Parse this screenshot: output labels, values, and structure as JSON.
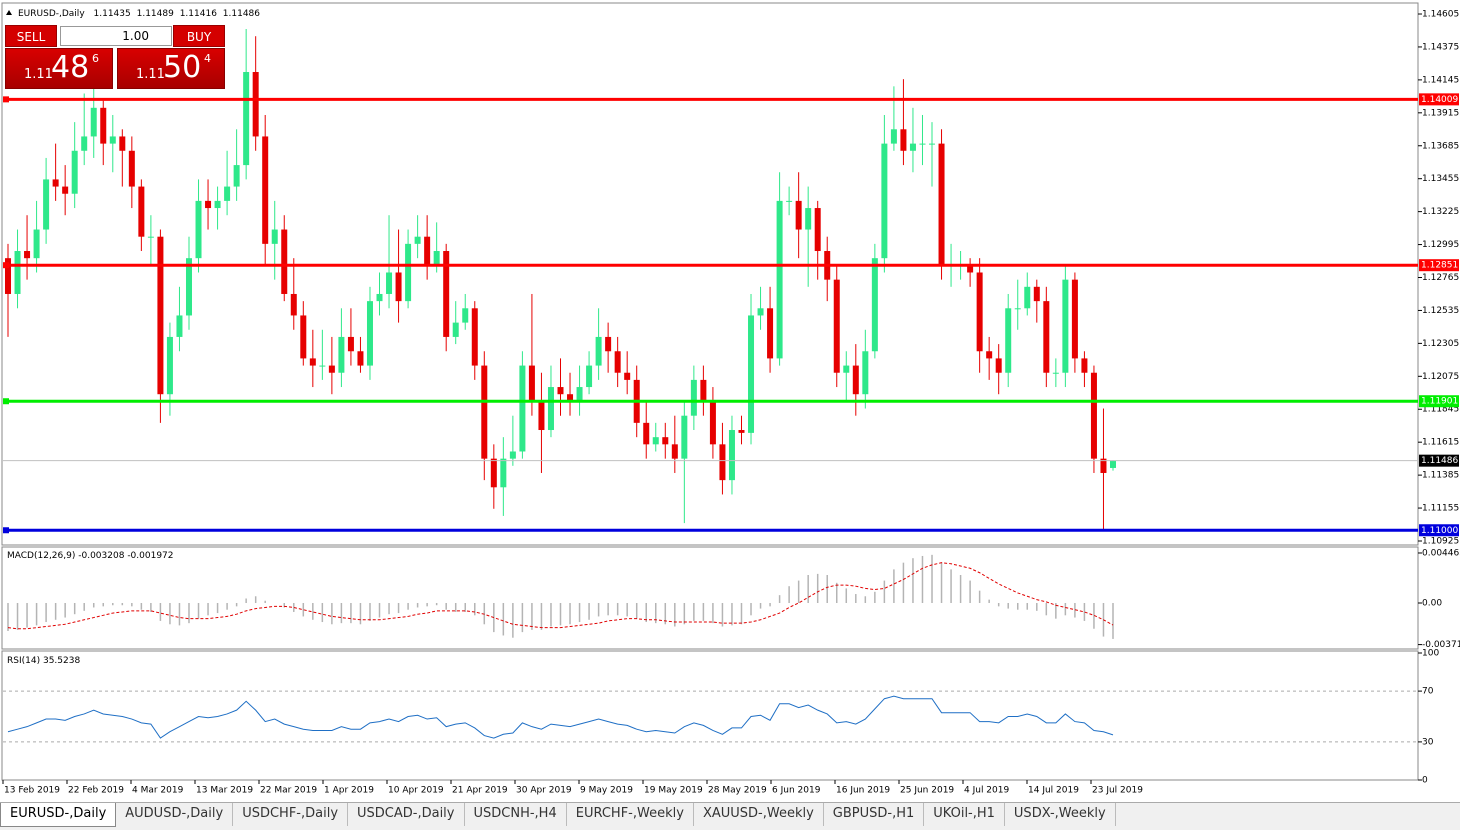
{
  "header": {
    "symbol": "EURUSD-,Daily"
  },
  "trade_panel": {
    "sell": "SELL",
    "buy": "BUY",
    "volume": "1.00",
    "bid": {
      "big": "1.11",
      "main": "48",
      "small": "6"
    },
    "ask": {
      "big": "1.11",
      "main": "50",
      "small": "4"
    }
  },
  "chart_data": [
    {
      "type": "candlestick",
      "title": "EURUSD-,Daily",
      "up_color": "#2ee88a",
      "down_color": "#e60000",
      "open": [
        1.129,
        1.1265,
        1.1295,
        1.129,
        1.131,
        1.1345,
        1.134,
        1.1335,
        1.1365,
        1.1375,
        1.1395,
        1.137,
        1.1375,
        1.1365,
        1.134,
        1.1305,
        1.1305,
        1.1195,
        1.1235,
        1.125,
        1.129,
        1.133,
        1.1325,
        1.133,
        1.134,
        1.1355,
        1.142,
        1.1375,
        1.13,
        1.131,
        1.1265,
        1.125,
        1.122,
        1.1215,
        1.1215,
        1.121,
        1.1235,
        1.1225,
        1.1215,
        1.126,
        1.1265,
        1.128,
        1.126,
        1.13,
        1.1305,
        1.1285,
        1.1295,
        1.1235,
        1.1245,
        1.1255,
        1.1215,
        1.115,
        1.113,
        1.115,
        1.1155,
        1.1215,
        1.119,
        1.117,
        1.12,
        1.1195,
        1.119,
        1.12,
        1.1215,
        1.1235,
        1.1225,
        1.121,
        1.1205,
        1.1175,
        1.116,
        1.1165,
        1.116,
        1.115,
        1.118,
        1.1205,
        1.119,
        1.116,
        1.1135,
        1.117,
        1.1168,
        1.125,
        1.1255,
        1.122,
        1.133,
        1.133,
        1.131,
        1.1325,
        1.1295,
        1.1275,
        1.121,
        1.1215,
        1.1195,
        1.1225,
        1.129,
        1.137,
        1.138,
        1.1365,
        1.137,
        1.137,
        1.137,
        1.1285,
        1.1285,
        1.1285,
        1.128,
        1.1225,
        1.122,
        1.121,
        1.1255,
        1.1255,
        1.127,
        1.126,
        1.121,
        1.121,
        1.1275,
        1.122,
        1.121,
        1.115,
        1.11435
      ],
      "high": [
        1.13,
        1.131,
        1.132,
        1.133,
        1.136,
        1.137,
        1.1355,
        1.1385,
        1.1405,
        1.141,
        1.14,
        1.139,
        1.138,
        1.1375,
        1.1345,
        1.132,
        1.131,
        1.1245,
        1.127,
        1.1305,
        1.1345,
        1.1345,
        1.134,
        1.1365,
        1.138,
        1.145,
        1.1445,
        1.139,
        1.133,
        1.132,
        1.129,
        1.126,
        1.124,
        1.124,
        1.1235,
        1.1255,
        1.1255,
        1.1235,
        1.127,
        1.128,
        1.132,
        1.131,
        1.131,
        1.132,
        1.132,
        1.1315,
        1.13,
        1.126,
        1.1265,
        1.126,
        1.1225,
        1.116,
        1.1165,
        1.118,
        1.1225,
        1.1265,
        1.121,
        1.1215,
        1.122,
        1.121,
        1.1215,
        1.1225,
        1.1255,
        1.1245,
        1.1235,
        1.1225,
        1.1215,
        1.119,
        1.1175,
        1.1175,
        1.118,
        1.119,
        1.1215,
        1.1215,
        1.12,
        1.1175,
        1.118,
        1.118,
        1.1265,
        1.127,
        1.127,
        1.135,
        1.134,
        1.135,
        1.134,
        1.133,
        1.1305,
        1.1285,
        1.1225,
        1.123,
        1.124,
        1.13,
        1.139,
        1.141,
        1.1415,
        1.1395,
        1.139,
        1.1385,
        1.138,
        1.13,
        1.1295,
        1.129,
        1.129,
        1.1235,
        1.123,
        1.1265,
        1.1275,
        1.128,
        1.1275,
        1.127,
        1.122,
        1.1285,
        1.128,
        1.1225,
        1.1215,
        1.1185,
        1.11489
      ],
      "low": [
        1.1235,
        1.1255,
        1.1275,
        1.128,
        1.13,
        1.133,
        1.132,
        1.1325,
        1.1355,
        1.136,
        1.1355,
        1.135,
        1.134,
        1.1325,
        1.1295,
        1.1285,
        1.1175,
        1.118,
        1.1225,
        1.124,
        1.128,
        1.131,
        1.131,
        1.132,
        1.133,
        1.1345,
        1.1365,
        1.1285,
        1.1275,
        1.126,
        1.124,
        1.1215,
        1.12,
        1.1205,
        1.1195,
        1.12,
        1.1215,
        1.121,
        1.1205,
        1.125,
        1.1255,
        1.1245,
        1.1255,
        1.129,
        1.1275,
        1.128,
        1.1225,
        1.123,
        1.124,
        1.1205,
        1.1135,
        1.1115,
        1.111,
        1.1145,
        1.115,
        1.118,
        1.114,
        1.1165,
        1.118,
        1.118,
        1.118,
        1.1195,
        1.1205,
        1.121,
        1.12,
        1.1195,
        1.1165,
        1.115,
        1.1155,
        1.115,
        1.114,
        1.1105,
        1.117,
        1.118,
        1.115,
        1.1125,
        1.1125,
        1.116,
        1.116,
        1.124,
        1.121,
        1.1215,
        1.132,
        1.129,
        1.127,
        1.1275,
        1.126,
        1.12,
        1.119,
        1.118,
        1.1185,
        1.122,
        1.128,
        1.1365,
        1.1355,
        1.135,
        1.1355,
        1.134,
        1.1275,
        1.127,
        1.1275,
        1.127,
        1.121,
        1.1205,
        1.1195,
        1.12,
        1.124,
        1.125,
        1.1245,
        1.12,
        1.12,
        1.12,
        1.121,
        1.12,
        1.114,
        1.11,
        1.11416
      ],
      "close": [
        1.1265,
        1.1295,
        1.129,
        1.131,
        1.1345,
        1.134,
        1.1335,
        1.1365,
        1.1375,
        1.1395,
        1.137,
        1.1375,
        1.1365,
        1.134,
        1.1305,
        1.1305,
        1.1195,
        1.1235,
        1.125,
        1.129,
        1.133,
        1.1325,
        1.133,
        1.134,
        1.1355,
        1.142,
        1.1375,
        1.13,
        1.131,
        1.1265,
        1.125,
        1.122,
        1.1215,
        1.1215,
        1.121,
        1.1235,
        1.1225,
        1.1215,
        1.126,
        1.1265,
        1.128,
        1.126,
        1.13,
        1.1305,
        1.1285,
        1.1295,
        1.1235,
        1.1245,
        1.1255,
        1.1215,
        1.115,
        1.113,
        1.115,
        1.1155,
        1.1215,
        1.119,
        1.117,
        1.12,
        1.1195,
        1.119,
        1.12,
        1.1215,
        1.1235,
        1.1225,
        1.121,
        1.1205,
        1.1175,
        1.116,
        1.1165,
        1.116,
        1.115,
        1.118,
        1.1205,
        1.119,
        1.116,
        1.1135,
        1.117,
        1.1168,
        1.125,
        1.1255,
        1.122,
        1.133,
        1.133,
        1.131,
        1.1325,
        1.1295,
        1.1275,
        1.121,
        1.1215,
        1.1195,
        1.1225,
        1.129,
        1.137,
        1.138,
        1.1365,
        1.137,
        1.137,
        1.137,
        1.1285,
        1.1285,
        1.1285,
        1.128,
        1.1225,
        1.122,
        1.121,
        1.1255,
        1.1255,
        1.127,
        1.126,
        1.121,
        1.121,
        1.1275,
        1.122,
        1.121,
        1.115,
        1.114,
        1.11486
      ],
      "ylim": [
        1.10904,
        1.14647
      ],
      "yticks": [
        1.14605,
        1.14375,
        1.14145,
        1.13915,
        1.13685,
        1.13455,
        1.13225,
        1.12995,
        1.12765,
        1.12535,
        1.12305,
        1.12075,
        1.11845,
        1.11615,
        1.11385,
        1.11155,
        1.10925
      ],
      "levels": [
        {
          "value": 1.14009,
          "color": "#ff0000"
        },
        {
          "value": 1.12851,
          "color": "#ff0000"
        },
        {
          "value": 1.11901,
          "color": "#00ee00"
        },
        {
          "value": 1.11,
          "label": "1.11000",
          "color": "#0000dd"
        }
      ],
      "x_labels": [
        "13 Feb 2019",
        "22 Feb 2019",
        "4 Mar 2019",
        "13 Mar 2019",
        "22 Mar 2019",
        "1 Apr 2019",
        "10 Apr 2019",
        "21 Apr 2019",
        "30 Apr 2019",
        "9 May 2019",
        "19 May 2019",
        "28 May 2019",
        "6 Jun 2019",
        "16 Jun 2019",
        "25 Jun 2019",
        "4 Jul 2019",
        "14 Jul 2019",
        "23 Jul 2019"
      ]
    },
    {
      "type": "macd",
      "title": "MACD(12,26,9)",
      "hist_color": "#b4b4b4",
      "signal_color": "#e00000",
      "macd": [
        -0.0025,
        -0.0024,
        -0.0022,
        -0.002,
        -0.0017,
        -0.0015,
        -0.0013,
        -0.001,
        -0.0007,
        -0.0004,
        -0.0003,
        -0.0002,
        -0.0002,
        -0.0003,
        -0.0006,
        -0.0008,
        -0.0016,
        -0.0019,
        -0.002,
        -0.0018,
        -0.0014,
        -0.0011,
        -0.0009,
        -0.0006,
        -0.0003,
        0.0004,
        0.0006,
        0.0002,
        0.0,
        -0.0004,
        -0.0008,
        -0.0012,
        -0.0015,
        -0.0017,
        -0.0019,
        -0.0018,
        -0.0018,
        -0.0019,
        -0.0016,
        -0.0013,
        -0.001,
        -0.0009,
        -0.0006,
        -0.0004,
        -0.0003,
        -0.0002,
        -0.0006,
        -0.0008,
        -0.0008,
        -0.0011,
        -0.0019,
        -0.0026,
        -0.0029,
        -0.0031,
        -0.0026,
        -0.0024,
        -0.0024,
        -0.0021,
        -0.002,
        -0.0019,
        -0.0017,
        -0.0015,
        -0.0012,
        -0.0011,
        -0.0011,
        -0.0012,
        -0.0014,
        -0.0017,
        -0.0018,
        -0.0019,
        -0.0021,
        -0.0019,
        -0.0016,
        -0.0016,
        -0.0018,
        -0.0021,
        -0.002,
        -0.0019,
        -0.0011,
        -0.0005,
        -0.0003,
        0.0007,
        0.0015,
        0.002,
        0.0025,
        0.0026,
        0.0025,
        0.0018,
        0.0013,
        0.0008,
        0.0006,
        0.001,
        0.002,
        0.003,
        0.0036,
        0.004,
        0.0042,
        0.0043,
        0.0036,
        0.003,
        0.0025,
        0.002,
        0.0011,
        0.0003,
        -0.0003,
        -0.0005,
        -0.0006,
        -0.0006,
        -0.0007,
        -0.0011,
        -0.0014,
        -0.0011,
        -0.0013,
        -0.0016,
        -0.0023,
        -0.003,
        -0.003208
      ],
      "signal": [
        -0.0022,
        -0.0023,
        -0.0023,
        -0.0022,
        -0.0021,
        -0.002,
        -0.0019,
        -0.0017,
        -0.0015,
        -0.0013,
        -0.0011,
        -0.0009,
        -0.0008,
        -0.0007,
        -0.0007,
        -0.0007,
        -0.0009,
        -0.0011,
        -0.0013,
        -0.0014,
        -0.0014,
        -0.0014,
        -0.0013,
        -0.0012,
        -0.001,
        -0.0007,
        -0.0005,
        -0.0004,
        -0.0003,
        -0.0003,
        -0.0004,
        -0.0006,
        -0.0008,
        -0.001,
        -0.0012,
        -0.0013,
        -0.0014,
        -0.0015,
        -0.0015,
        -0.0015,
        -0.0014,
        -0.0013,
        -0.0012,
        -0.001,
        -0.0009,
        -0.0007,
        -0.0007,
        -0.0007,
        -0.0007,
        -0.0008,
        -0.001,
        -0.0013,
        -0.0016,
        -0.0019,
        -0.002,
        -0.0021,
        -0.0022,
        -0.0022,
        -0.0022,
        -0.0021,
        -0.002,
        -0.0019,
        -0.0018,
        -0.0016,
        -0.0015,
        -0.0014,
        -0.0014,
        -0.0015,
        -0.0015,
        -0.0016,
        -0.0017,
        -0.0017,
        -0.0017,
        -0.0017,
        -0.0017,
        -0.0018,
        -0.0018,
        -0.0018,
        -0.0017,
        -0.0015,
        -0.0012,
        -0.0009,
        -0.0004,
        0.0,
        0.0005,
        0.001,
        0.0014,
        0.0016,
        0.0016,
        0.0015,
        0.0013,
        0.0012,
        0.0013,
        0.0017,
        0.0021,
        0.0026,
        0.0031,
        0.0034,
        0.0036,
        0.0035,
        0.0033,
        0.0031,
        0.0027,
        0.0022,
        0.0017,
        0.0013,
        0.0009,
        0.0006,
        0.0003,
        0.0001,
        -0.0002,
        -0.0004,
        -0.0006,
        -0.0008,
        -0.0011,
        -0.0015,
        -0.001972
      ],
      "ylim": [
        -0.00384,
        0.00491
      ],
      "yticks": [
        0.004465,
        {
          "value": 0,
          "label": "0.00"
        },
        -0.003715
      ]
    },
    {
      "type": "rsi",
      "title": "RSI(14)",
      "color": "#1f6fc5",
      "values": [
        38,
        40,
        42,
        45,
        48,
        48,
        47,
        50,
        52,
        55,
        52,
        51,
        50,
        48,
        45,
        44,
        33,
        38,
        42,
        46,
        50,
        49,
        50,
        52,
        55,
        62,
        55,
        46,
        48,
        44,
        42,
        40,
        39,
        39,
        39,
        42,
        40,
        40,
        45,
        46,
        48,
        46,
        50,
        51,
        48,
        49,
        42,
        44,
        45,
        41,
        35,
        33,
        36,
        37,
        45,
        42,
        40,
        44,
        43,
        42,
        44,
        46,
        48,
        46,
        44,
        43,
        40,
        38,
        39,
        38,
        37,
        42,
        45,
        43,
        39,
        36,
        41,
        41,
        50,
        51,
        47,
        60,
        60,
        57,
        59,
        55,
        52,
        45,
        46,
        44,
        48,
        56,
        64,
        66,
        64,
        64,
        64,
        64,
        53,
        53,
        53,
        53,
        46,
        46,
        45,
        50,
        50,
        52,
        50,
        45,
        45,
        52,
        46,
        45,
        39,
        38,
        35.5238
      ],
      "ylim": [
        0,
        100
      ],
      "yticks": [
        100,
        70,
        30,
        0
      ],
      "levels": [
        70,
        30
      ]
    }
  ],
  "tabs": [
    "EURUSD-,Daily",
    "AUDUSD-,Daily",
    "USDCHF-,Daily",
    "USDCAD-,Daily",
    "USDCNH-,H4",
    "EURCHF-,Weekly",
    "XAUUSD-,Weekly",
    "GBPUSD-,H1",
    "UKOil-,H1",
    "USDX-,Weekly"
  ]
}
